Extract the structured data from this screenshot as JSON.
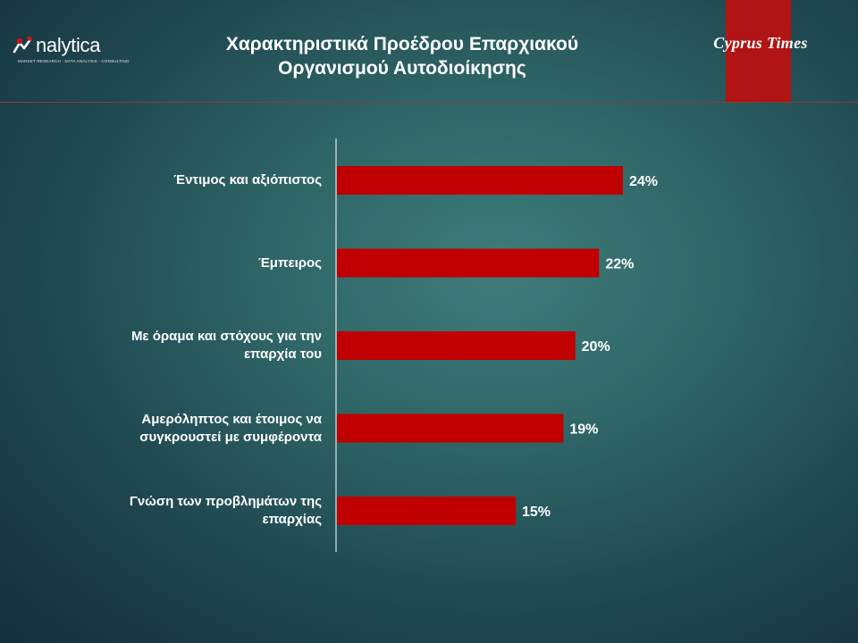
{
  "header": {
    "logo_text": "nalytica",
    "logo_tagline": "MARKET RESEARCH · DATA ANALYSIS · CONSULTING",
    "title_line1": "Χαρακτηριστικά Προέδρου Επαρχιακού",
    "title_line2": "Οργανισμού Αυτοδιοίκησης",
    "brand": "Cyprus Times"
  },
  "colors": {
    "bar": "#c00000",
    "axis": "#ffffff",
    "text": "#ffffff",
    "accent_strip": "#b01414"
  },
  "chart_data": {
    "type": "bar",
    "orientation": "horizontal",
    "title": "Χαρακτηριστικά Προέδρου Επαρχιακού Οργανισμού Αυτοδιοίκησης",
    "categories": [
      "Έντιμος και αξιόπιστος",
      "Έμπειρος",
      "Με όραμα και στόχους για την επαρχία του",
      "Αμερόληπτος και έτοιμος να συγκρουστεί με συμφέροντα",
      "Γνώση των προβλημάτων της επαρχίας"
    ],
    "category_lines": [
      [
        "Έντιμος και αξιόπιστος"
      ],
      [
        "Έμπειρος"
      ],
      [
        "Με όραμα και στόχους για την",
        "επαρχία του"
      ],
      [
        "Αμερόληπτος και έτοιμος να",
        "συγκρουστεί με συμφέροντα"
      ],
      [
        "Γνώση των προβλημάτων της",
        "επαρχίας"
      ]
    ],
    "values": [
      24,
      22,
      20,
      19,
      15
    ],
    "value_labels": [
      "24%",
      "22%",
      "20%",
      "19%",
      "15%"
    ],
    "unit": "%",
    "xlim": [
      0,
      30
    ],
    "grid": false,
    "legend": "none"
  }
}
